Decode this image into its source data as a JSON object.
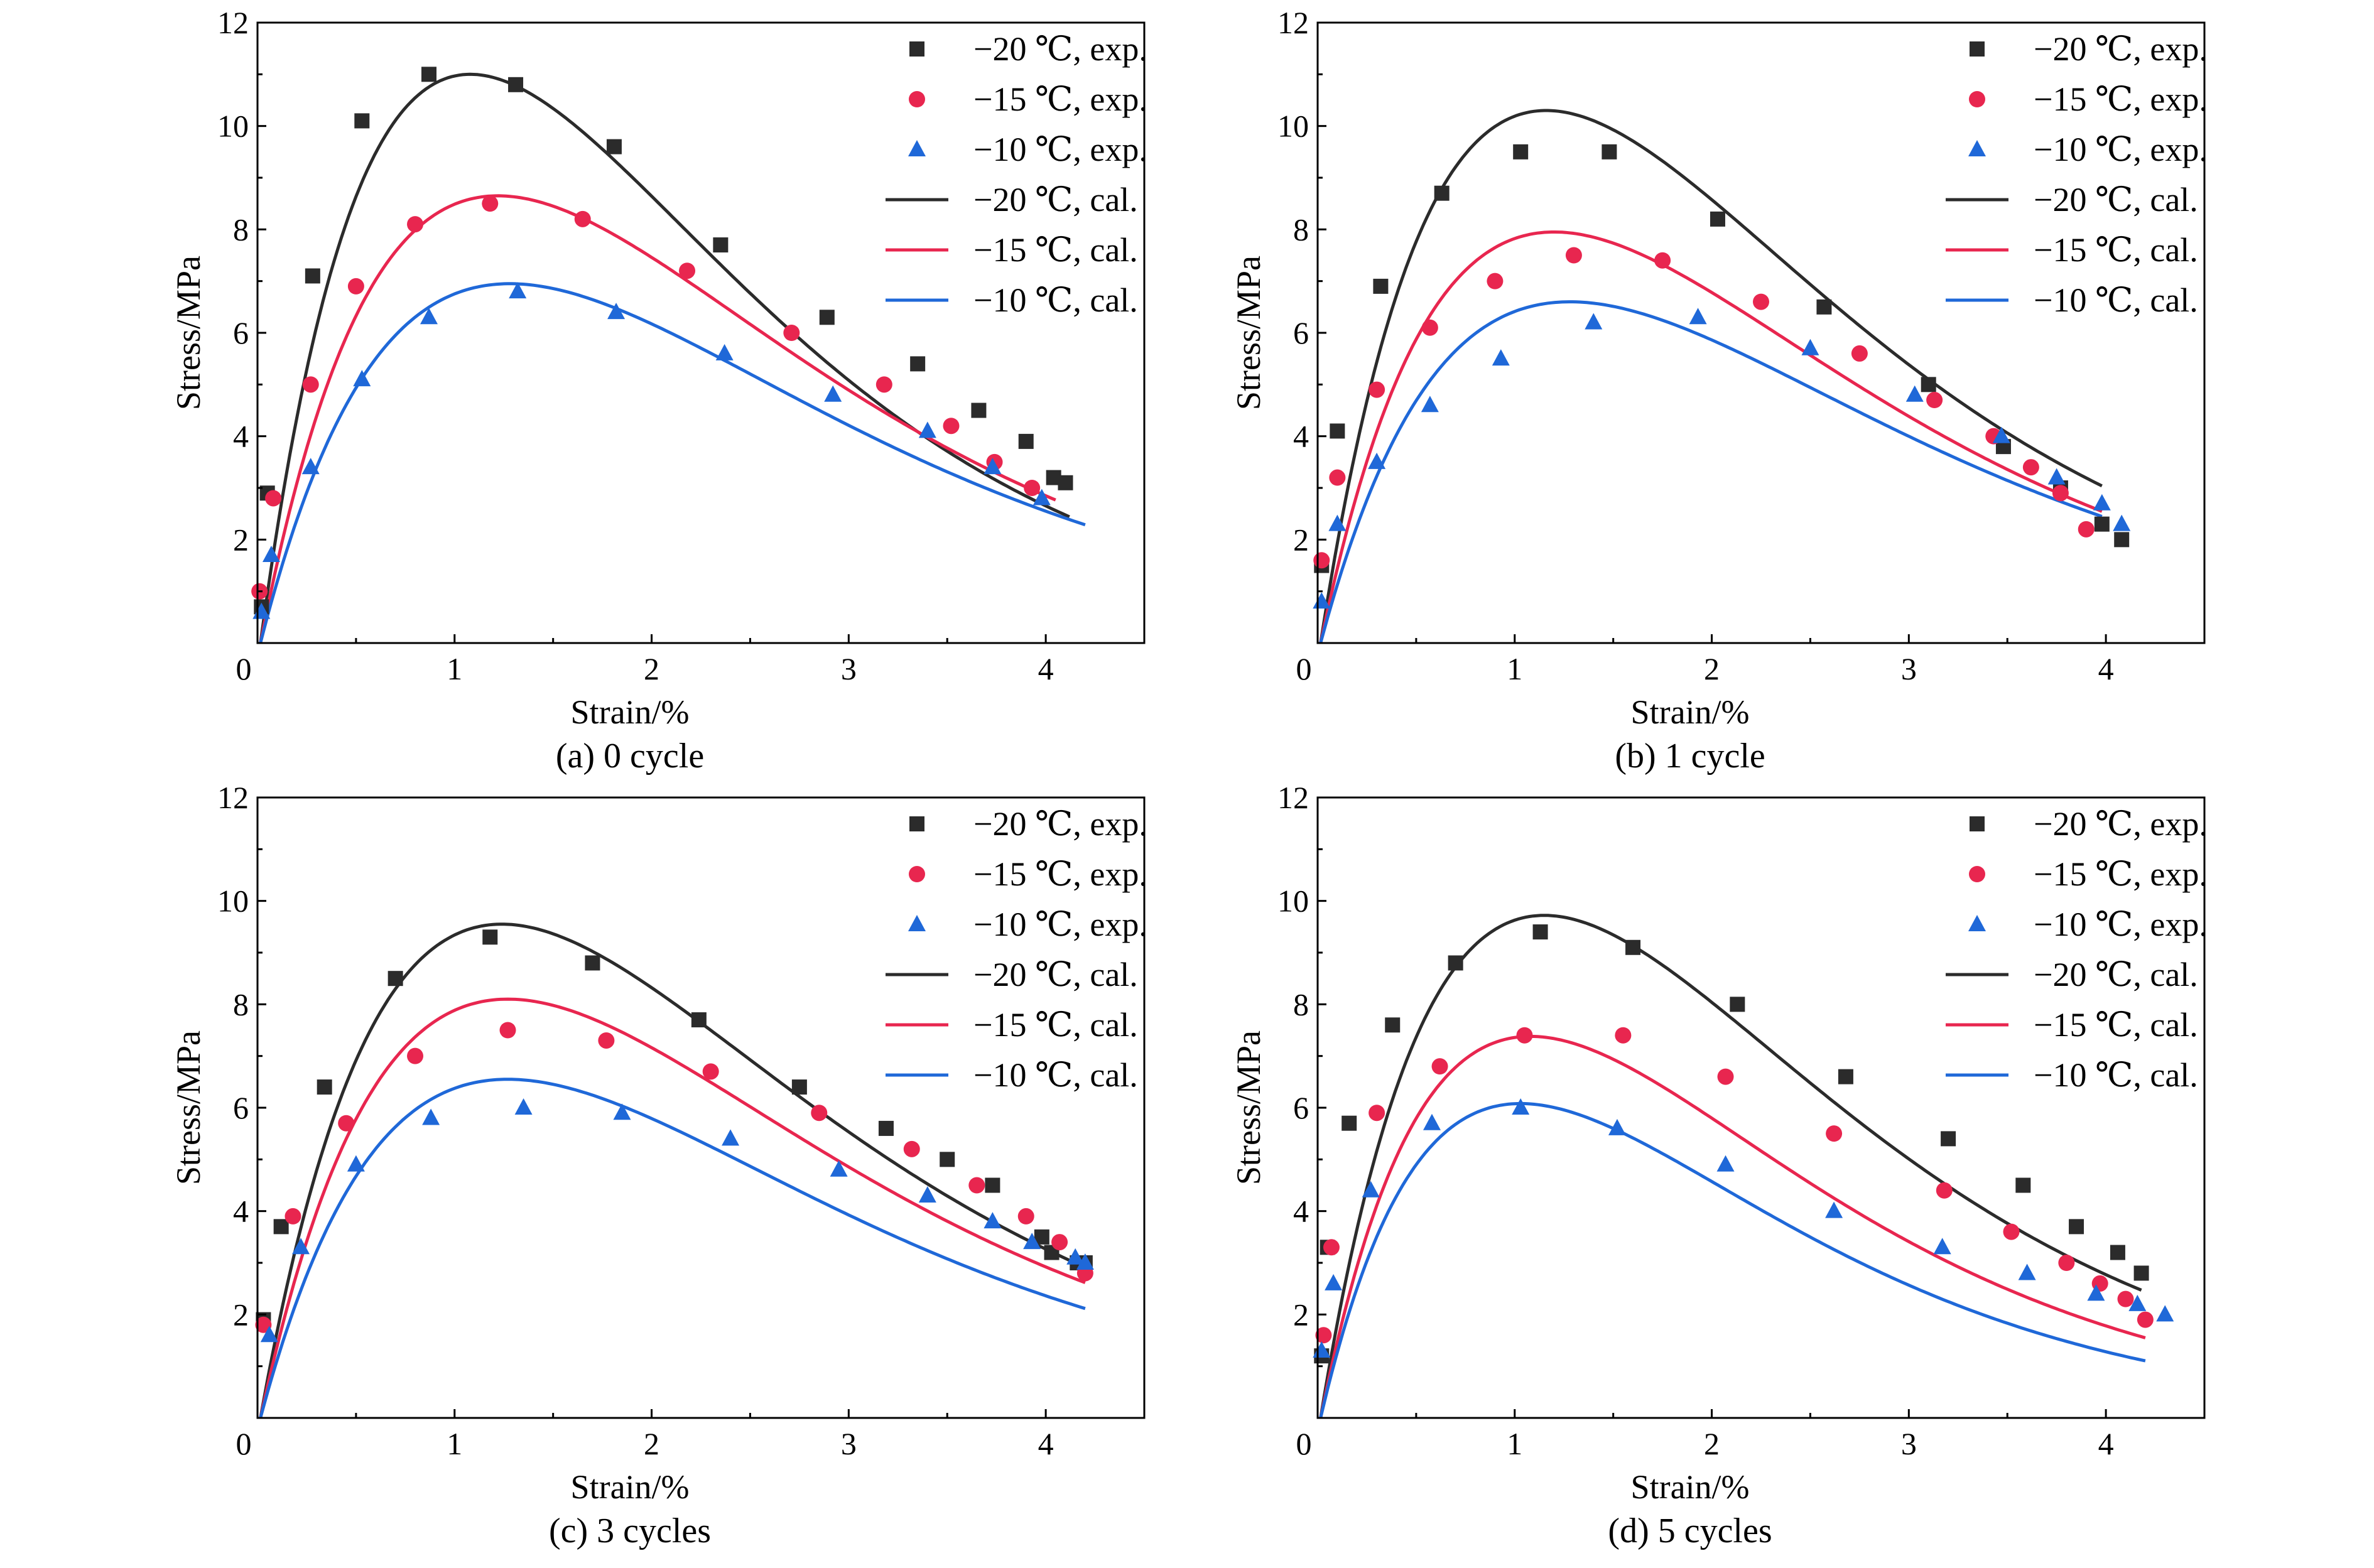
{
  "figure": {
    "colors": {
      "-20": "#2b2b2b",
      "-15": "#e8264f",
      "-10": "#1f68d8"
    }
  },
  "chart_data": [
    {
      "type": "line",
      "caption": "(a) 0 cycle",
      "xlabel": "Strain/%",
      "ylabel": "Stress/MPa",
      "xlim": [
        0,
        4.5
      ],
      "ylim": [
        0,
        12
      ],
      "xticks": [
        0,
        1,
        2,
        3,
        4
      ],
      "yticks": [
        0,
        2,
        4,
        6,
        8,
        10,
        12
      ],
      "grid": false,
      "legend_position": "top-right",
      "experimental": [
        {
          "name": "−20 ℃, exp.",
          "temp": "-20",
          "marker": "square",
          "x": [
            0.02,
            0.05,
            0.28,
            0.53,
            0.87,
            1.31,
            1.81,
            2.35,
            2.89,
            3.35,
            3.66,
            3.9,
            4.04,
            4.1
          ],
          "y": [
            0.7,
            2.9,
            7.1,
            10.1,
            11.0,
            10.8,
            9.6,
            7.7,
            6.3,
            5.4,
            4.5,
            3.9,
            3.2,
            3.1
          ]
        },
        {
          "name": "−15 ℃, exp.",
          "temp": "-15",
          "marker": "circle",
          "x": [
            0.01,
            0.08,
            0.27,
            0.5,
            0.8,
            1.18,
            1.65,
            2.18,
            2.71,
            3.18,
            3.52,
            3.74,
            3.93
          ],
          "y": [
            1.0,
            2.8,
            5.0,
            6.9,
            8.1,
            8.5,
            8.2,
            7.2,
            6.0,
            5.0,
            4.2,
            3.5,
            3.0
          ]
        },
        {
          "name": "−10 ℃, exp.",
          "temp": "-10",
          "marker": "triangle",
          "x": [
            0.02,
            0.07,
            0.27,
            0.53,
            0.87,
            1.32,
            1.82,
            2.37,
            2.92,
            3.4,
            3.73,
            3.98
          ],
          "y": [
            0.6,
            1.7,
            3.4,
            5.1,
            6.3,
            6.8,
            6.4,
            5.6,
            4.8,
            4.1,
            3.4,
            2.8
          ]
        }
      ],
      "calculated": [
        {
          "name": "−20 ℃, cal.",
          "temp": "-20",
          "x0": 0.015,
          "xmax": 4.12,
          "peak_x": 1.08,
          "peak_y": 11.0
        },
        {
          "name": "−15 ℃, cal.",
          "temp": "-15",
          "x0": 0.015,
          "xmax": 4.05,
          "peak_x": 1.22,
          "peak_y": 8.65
        },
        {
          "name": "−10 ℃, cal.",
          "temp": "-10",
          "x0": 0.015,
          "xmax": 4.2,
          "peak_x": 1.28,
          "peak_y": 6.95
        }
      ]
    },
    {
      "type": "line",
      "caption": "(b) 1 cycle",
      "xlabel": "Strain/%",
      "ylabel": "Stress/MPa",
      "xlim": [
        0,
        4.5
      ],
      "ylim": [
        0,
        12
      ],
      "xticks": [
        0,
        1,
        2,
        3,
        4
      ],
      "yticks": [
        0,
        2,
        4,
        6,
        8,
        10,
        12
      ],
      "grid": false,
      "legend_position": "top-right",
      "experimental": [
        {
          "name": "−20 ℃, exp.",
          "temp": "-20",
          "marker": "square",
          "x": [
            0.02,
            0.1,
            0.32,
            0.63,
            1.03,
            1.48,
            2.03,
            2.57,
            3.1,
            3.48,
            3.77,
            3.98,
            4.08
          ],
          "y": [
            1.5,
            4.1,
            6.9,
            8.7,
            9.5,
            9.5,
            8.2,
            6.5,
            5.0,
            3.8,
            3.0,
            2.3,
            2.0
          ]
        },
        {
          "name": "−15 ℃, exp.",
          "temp": "-15",
          "marker": "circle",
          "x": [
            0.02,
            0.1,
            0.3,
            0.57,
            0.9,
            1.3,
            1.75,
            2.25,
            2.75,
            3.13,
            3.43,
            3.62,
            3.77,
            3.9
          ],
          "y": [
            1.6,
            3.2,
            4.9,
            6.1,
            7.0,
            7.5,
            7.4,
            6.6,
            5.6,
            4.7,
            4.0,
            3.4,
            2.9,
            2.2
          ]
        },
        {
          "name": "−10 ℃, exp.",
          "temp": "-10",
          "marker": "triangle",
          "x": [
            0.02,
            0.1,
            0.3,
            0.57,
            0.93,
            1.4,
            1.93,
            2.5,
            3.03,
            3.47,
            3.75,
            3.98,
            4.08
          ],
          "y": [
            0.8,
            2.3,
            3.5,
            4.6,
            5.5,
            6.2,
            6.3,
            5.7,
            4.8,
            4.0,
            3.2,
            2.7,
            2.3
          ]
        }
      ],
      "calculated": [
        {
          "name": "−20 ℃, cal.",
          "temp": "-20",
          "x0": 0.015,
          "xmax": 3.98,
          "peak_x": 1.16,
          "peak_y": 10.3
        },
        {
          "name": "−15 ℃, cal.",
          "temp": "-15",
          "x0": 0.015,
          "xmax": 3.98,
          "peak_x": 1.2,
          "peak_y": 7.95
        },
        {
          "name": "−10 ℃, cal.",
          "temp": "-10",
          "x0": 0.015,
          "xmax": 3.98,
          "peak_x": 1.28,
          "peak_y": 6.6
        }
      ]
    },
    {
      "type": "line",
      "caption": "(c) 3 cycles",
      "xlabel": "Strain/%",
      "ylabel": "Stress/MPa",
      "xlim": [
        0,
        4.5
      ],
      "ylim": [
        0,
        12
      ],
      "xticks": [
        0,
        1,
        2,
        3,
        4
      ],
      "yticks": [
        0,
        2,
        4,
        6,
        8,
        10,
        12
      ],
      "grid": false,
      "legend_position": "top-right",
      "experimental": [
        {
          "name": "−20 ℃, exp.",
          "temp": "-20",
          "marker": "square",
          "x": [
            0.03,
            0.12,
            0.34,
            0.7,
            1.18,
            1.7,
            2.24,
            2.75,
            3.19,
            3.5,
            3.73,
            3.98,
            4.03,
            4.16,
            4.2
          ],
          "y": [
            1.9,
            3.7,
            6.4,
            8.5,
            9.3,
            8.8,
            7.7,
            6.4,
            5.6,
            5.0,
            4.5,
            3.5,
            3.2,
            3.0,
            3.0
          ]
        },
        {
          "name": "−15 ℃, exp.",
          "temp": "-15",
          "marker": "circle",
          "x": [
            0.03,
            0.18,
            0.45,
            0.8,
            1.27,
            1.77,
            2.3,
            2.85,
            3.32,
            3.65,
            3.9,
            4.07,
            4.2
          ],
          "y": [
            1.8,
            3.9,
            5.7,
            7.0,
            7.5,
            7.3,
            6.7,
            5.9,
            5.2,
            4.5,
            3.9,
            3.4,
            2.8
          ]
        },
        {
          "name": "−10 ℃, exp.",
          "temp": "-10",
          "marker": "triangle",
          "x": [
            0.06,
            0.22,
            0.5,
            0.88,
            1.35,
            1.85,
            2.4,
            2.95,
            3.4,
            3.73,
            3.93,
            4.15,
            4.2
          ],
          "y": [
            1.6,
            3.3,
            4.9,
            5.8,
            6.0,
            5.9,
            5.4,
            4.8,
            4.3,
            3.8,
            3.4,
            3.1,
            3.0
          ]
        }
      ],
      "calculated": [
        {
          "name": "−20 ℃, cal.",
          "temp": "-20",
          "x0": 0.015,
          "xmax": 4.2,
          "peak_x": 1.24,
          "peak_y": 9.55
        },
        {
          "name": "−15 ℃, cal.",
          "temp": "-15",
          "x0": 0.015,
          "xmax": 4.2,
          "peak_x": 1.27,
          "peak_y": 8.1
        },
        {
          "name": "−10 ℃, cal.",
          "temp": "-10",
          "x0": 0.015,
          "xmax": 4.2,
          "peak_x": 1.27,
          "peak_y": 6.55
        }
      ]
    },
    {
      "type": "line",
      "caption": "(d) 5 cycles",
      "xlabel": "Strain/%",
      "ylabel": "Stress/MPa",
      "xlim": [
        0,
        4.5
      ],
      "ylim": [
        0,
        12
      ],
      "xticks": [
        0,
        1,
        2,
        3,
        4
      ],
      "yticks": [
        0,
        2,
        4,
        6,
        8,
        10,
        12
      ],
      "grid": false,
      "legend_position": "top-right",
      "experimental": [
        {
          "name": "−20 ℃, exp.",
          "temp": "-20",
          "marker": "square",
          "x": [
            0.02,
            0.05,
            0.16,
            0.38,
            0.7,
            1.13,
            1.6,
            2.13,
            2.68,
            3.2,
            3.58,
            3.85,
            4.06,
            4.18
          ],
          "y": [
            1.2,
            3.3,
            5.7,
            7.6,
            8.8,
            9.4,
            9.1,
            8.0,
            6.6,
            5.4,
            4.5,
            3.7,
            3.2,
            2.8
          ]
        },
        {
          "name": "−15 ℃, exp.",
          "temp": "-15",
          "marker": "circle",
          "x": [
            0.03,
            0.07,
            0.3,
            0.62,
            1.05,
            1.55,
            2.07,
            2.62,
            3.18,
            3.52,
            3.8,
            3.97,
            4.1,
            4.2
          ],
          "y": [
            1.6,
            3.3,
            5.9,
            6.8,
            7.4,
            7.4,
            6.6,
            5.5,
            4.4,
            3.6,
            3.0,
            2.6,
            2.3,
            1.9
          ]
        },
        {
          "name": "−10 ℃, exp.",
          "temp": "-10",
          "marker": "triangle",
          "x": [
            0.02,
            0.08,
            0.27,
            0.58,
            1.03,
            1.52,
            2.07,
            2.62,
            3.17,
            3.6,
            3.95,
            4.16,
            4.3
          ],
          "y": [
            1.3,
            2.6,
            4.4,
            5.7,
            6.0,
            5.6,
            4.9,
            4.0,
            3.3,
            2.8,
            2.4,
            2.2,
            2.0
          ]
        }
      ],
      "calculated": [
        {
          "name": "−20 ℃, cal.",
          "temp": "-20",
          "x0": 0.015,
          "xmax": 4.18,
          "peak_x": 1.15,
          "peak_y": 9.72
        },
        {
          "name": "−15 ℃, cal.",
          "temp": "-15",
          "x0": 0.015,
          "xmax": 4.2,
          "peak_x": 1.08,
          "peak_y": 7.38
        },
        {
          "name": "−10 ℃, cal.",
          "temp": "-10",
          "x0": 0.015,
          "xmax": 4.2,
          "peak_x": 1.03,
          "peak_y": 6.08
        }
      ]
    }
  ]
}
